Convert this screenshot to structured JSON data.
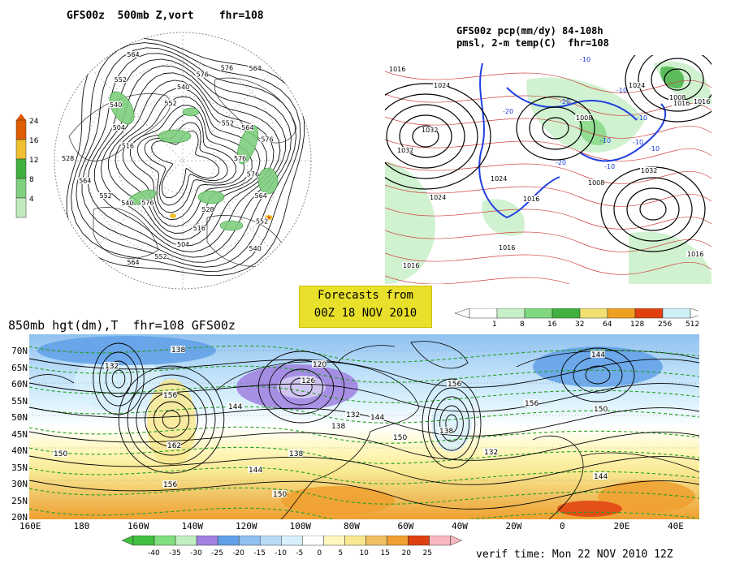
{
  "panels": {
    "polar": {
      "title": "GFS00z  500mb Z,vort    fhr=108",
      "contour_labels": [
        "576",
        "576",
        "564",
        "552",
        "540",
        "528",
        "516",
        "504",
        "552",
        "564",
        "576",
        "540",
        "552",
        "564",
        "528",
        "516",
        "504",
        "540",
        "552",
        "564",
        "552",
        "540",
        "576",
        "576",
        "564",
        "552",
        "564",
        "576"
      ],
      "colorbar": {
        "values": [
          "24",
          "16",
          "12",
          "8",
          "4"
        ],
        "colors": [
          "#e05a00",
          "#f0c030",
          "#40b040",
          "#80d080",
          "#c0ecc0"
        ]
      }
    },
    "precip": {
      "title_line1": "GFS00z pcp(mm/dy) 84-108h",
      "title_line2": "pmsl, 2-m temp(C)  fhr=108",
      "isobar_labels": [
        "1016",
        "1024",
        "1032",
        "1032",
        "1024",
        "1016",
        "1024",
        "1016",
        "1008",
        "1008",
        "1016",
        "1024",
        "1032",
        "1016",
        "1008",
        "1016",
        "1016"
      ],
      "temp_labels": [
        "-10",
        "-20",
        "-20",
        "-10",
        "-10",
        "-10",
        "-10",
        "-10",
        "-10",
        "-20"
      ],
      "colorbar": {
        "values": [
          "1",
          "8",
          "16",
          "32",
          "64",
          "128",
          "256",
          "512"
        ],
        "colors": [
          "#ffffff",
          "#c8f0c8",
          "#80d880",
          "#40b040",
          "#f0e070",
          "#f0a020",
          "#e04010",
          "#d0f0f8"
        ]
      }
    },
    "stamp": {
      "line1": "Forecasts from",
      "line2": "00Z 18 NOV 2010"
    },
    "h850": {
      "title": "850mb hgt(dm),T  fhr=108 GFS00z",
      "lat_labels": [
        "70N",
        "65N",
        "60N",
        "55N",
        "50N",
        "45N",
        "40N",
        "35N",
        "30N",
        "25N",
        "20N"
      ],
      "lon_labels": [
        "160E",
        "180",
        "160W",
        "140W",
        "120W",
        "100W",
        "80W",
        "60W",
        "40W",
        "20W",
        "0",
        "20E",
        "40E"
      ],
      "height_labels": [
        "138",
        "132",
        "156",
        "162",
        "156",
        "144",
        "150",
        "120",
        "126",
        "132",
        "138",
        "144",
        "150",
        "156",
        "138",
        "132",
        "144",
        "156",
        "150",
        "144",
        "138",
        "144",
        "150"
      ],
      "colorbar": {
        "values": [
          "-40",
          "-35",
          "-30",
          "-25",
          "-20",
          "-15",
          "-10",
          "-5",
          "0",
          "5",
          "10",
          "15",
          "20",
          "25"
        ],
        "colors": [
          "#40c040",
          "#80e080",
          "#c0f0c0",
          "#a080e0",
          "#60a0e8",
          "#90c0f0",
          "#b8dcf8",
          "#d8f0fc",
          "#ffffff",
          "#fff8c0",
          "#f8e890",
          "#f0c060",
          "#f0a030",
          "#e04010",
          "#f8b8c0"
        ]
      },
      "verif": "verif time: Mon 22 NOV 2010 12Z"
    }
  }
}
